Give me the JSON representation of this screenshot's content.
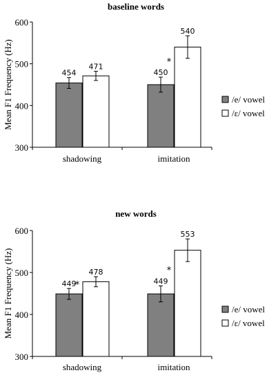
{
  "chart_data": [
    {
      "type": "bar",
      "title": "baseline words",
      "ylabel": "Mean F1 Frequency (Hz)",
      "xlabel": "",
      "ylim": [
        300,
        600
      ],
      "yticks": [
        300,
        400,
        500,
        600
      ],
      "categories": [
        "shadowing",
        "imitation"
      ],
      "series": [
        {
          "name": "/e/ vowel",
          "color": "#808080",
          "values": [
            454,
            450
          ],
          "errors": [
            13,
            18
          ],
          "labels": [
            "454",
            "450"
          ]
        },
        {
          "name": "/ε/ vowel",
          "color": "#ffffff",
          "values": [
            471,
            540
          ],
          "errors": [
            11,
            27
          ],
          "labels": [
            "471",
            "540"
          ]
        }
      ],
      "annotations": [
        {
          "text": "*",
          "category": "imitation",
          "value": 508
        }
      ],
      "legend": "right"
    },
    {
      "type": "bar",
      "title": "new words",
      "ylabel": "Mean F1 Frequency (Hz)",
      "xlabel": "",
      "ylim": [
        300,
        600
      ],
      "yticks": [
        300,
        400,
        500,
        600
      ],
      "categories": [
        "shadowing",
        "imitation"
      ],
      "series": [
        {
          "name": "/e/ vowel",
          "color": "#808080",
          "values": [
            449,
            449
          ],
          "errors": [
            13,
            19
          ],
          "labels": [
            "449",
            "449"
          ]
        },
        {
          "name": "/ε/ vowel",
          "color": "#ffffff",
          "values": [
            478,
            553
          ],
          "errors": [
            12,
            27
          ],
          "labels": [
            "478",
            "553"
          ]
        }
      ],
      "annotations": [
        {
          "text": "*",
          "category": "shadowing",
          "value": 474
        },
        {
          "text": "*",
          "category": "imitation",
          "value": 508
        }
      ],
      "legend": "right"
    }
  ]
}
